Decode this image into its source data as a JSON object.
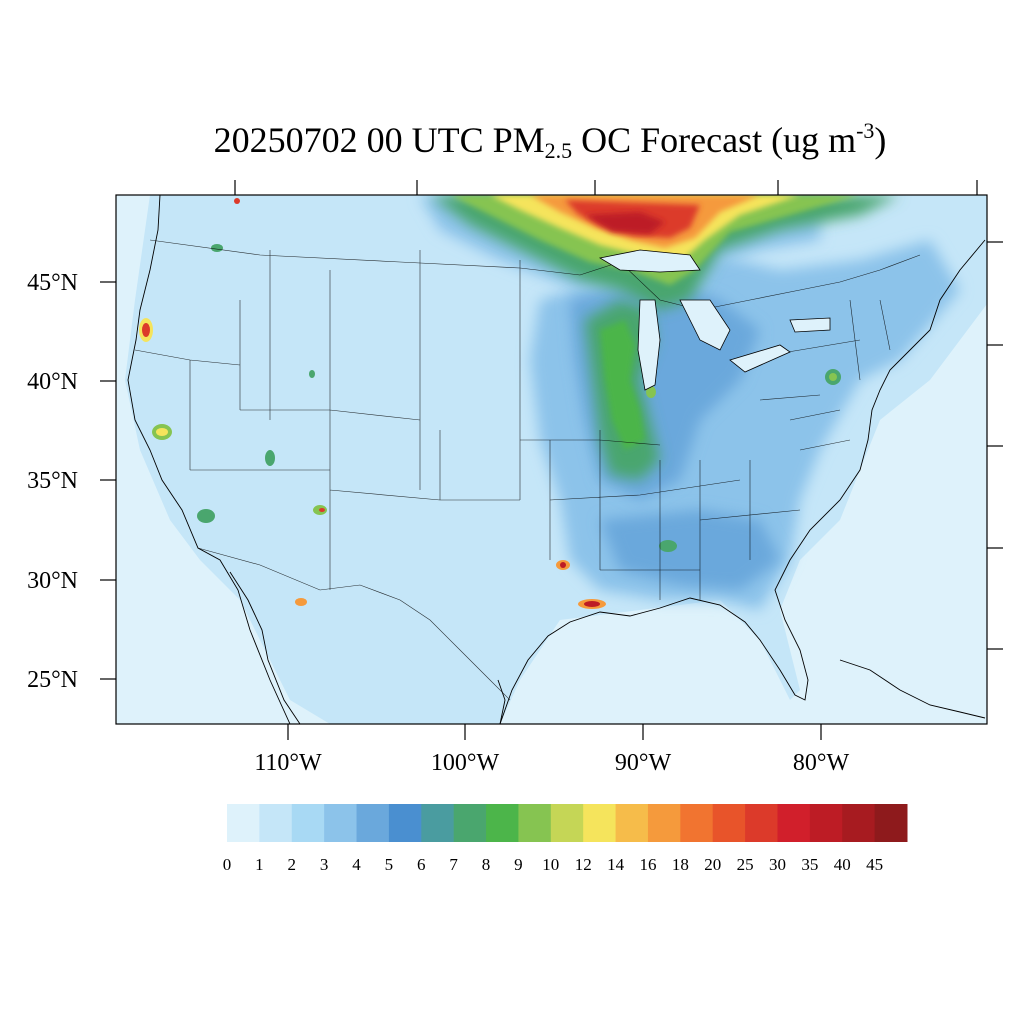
{
  "title": {
    "prefix": "20250702 00 UTC PM",
    "sub": "2.5",
    "middle": " OC Forecast (ug m",
    "sup": "-3",
    "suffix": ")"
  },
  "map": {
    "lat_labels": [
      "45°N",
      "40°N",
      "35°N",
      "30°N",
      "25°N"
    ],
    "lon_labels": [
      "110°W",
      "100°W",
      "90°W",
      "80°W"
    ]
  },
  "colorbar": {
    "labels": [
      "0",
      "1",
      "2",
      "3",
      "4",
      "5",
      "6",
      "7",
      "8",
      "9",
      "10",
      "12",
      "14",
      "16",
      "18",
      "20",
      "25",
      "30",
      "35",
      "40",
      "45"
    ],
    "colors": [
      "#def2fb",
      "#c5e6f8",
      "#a8d9f4",
      "#8cc3ea",
      "#6aa8dc",
      "#4a8fd0",
      "#4a9ca0",
      "#4aa66e",
      "#4cb54a",
      "#86c451",
      "#c5d656",
      "#f5e45c",
      "#f6bc4a",
      "#f59a3c",
      "#f17430",
      "#e8542a",
      "#dc3a2a",
      "#d11f2b",
      "#bd1c25",
      "#a71b20",
      "#8e1a1c"
    ]
  },
  "legend_colors": {
    "ocean": "#def2fb",
    "high_outline": "#8e1a1c"
  }
}
